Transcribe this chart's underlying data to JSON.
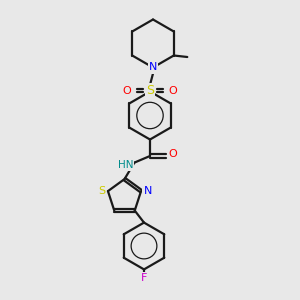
{
  "bg_color": "#e8e8e8",
  "bond_color": "#1a1a1a",
  "N_color": "#0000ff",
  "O_color": "#ff0000",
  "S_color": "#cccc00",
  "F_color": "#cc00cc",
  "H_color": "#008b8b",
  "line_width": 1.6,
  "figsize": [
    3.0,
    3.0
  ],
  "dpi": 100,
  "xlim": [
    0,
    10
  ],
  "ylim": [
    0,
    10
  ]
}
